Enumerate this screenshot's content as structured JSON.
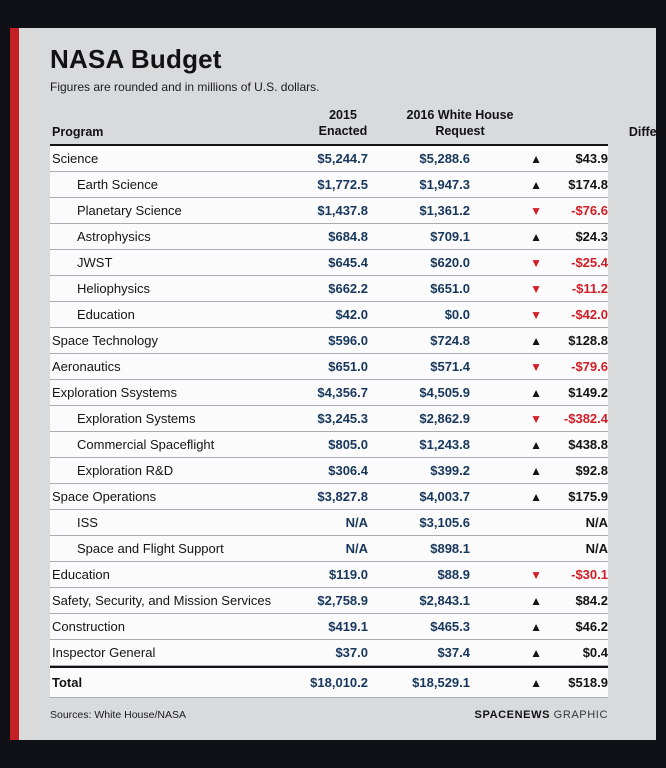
{
  "header": {
    "title": "NASA Budget",
    "subtitle": "Figures are rounded and in millions of U.S. dollars."
  },
  "table": {
    "columns": {
      "program": "Program",
      "enacted": "2015\nEnacted",
      "request": "2016 White House\nRequest",
      "difference": "Difference"
    },
    "rows": [
      {
        "program": "Science",
        "indent": false,
        "total": false,
        "enacted": "$5,244.7",
        "request": "$5,288.6",
        "difference": "$43.9",
        "direction": "up"
      },
      {
        "program": "Earth Science",
        "indent": true,
        "total": false,
        "enacted": "$1,772.5",
        "request": "$1,947.3",
        "difference": "$174.8",
        "direction": "up"
      },
      {
        "program": "Planetary Science",
        "indent": true,
        "total": false,
        "enacted": "$1,437.8",
        "request": "$1,361.2",
        "difference": "-$76.6",
        "direction": "down"
      },
      {
        "program": "Astrophysics",
        "indent": true,
        "total": false,
        "enacted": "$684.8",
        "request": "$709.1",
        "difference": "$24.3",
        "direction": "up"
      },
      {
        "program": "JWST",
        "indent": true,
        "total": false,
        "enacted": "$645.4",
        "request": "$620.0",
        "difference": "-$25.4",
        "direction": "down"
      },
      {
        "program": "Heliophysics",
        "indent": true,
        "total": false,
        "enacted": "$662.2",
        "request": "$651.0",
        "difference": "-$11.2",
        "direction": "down"
      },
      {
        "program": "Education",
        "indent": true,
        "total": false,
        "enacted": "$42.0",
        "request": "$0.0",
        "difference": "-$42.0",
        "direction": "down"
      },
      {
        "program": "Space Technology",
        "indent": false,
        "total": false,
        "enacted": "$596.0",
        "request": "$724.8",
        "difference": "$128.8",
        "direction": "up"
      },
      {
        "program": "Aeronautics",
        "indent": false,
        "total": false,
        "enacted": "$651.0",
        "request": "$571.4",
        "difference": "-$79.6",
        "direction": "down"
      },
      {
        "program": "Exploration Ssystems",
        "indent": false,
        "total": false,
        "enacted": "$4,356.7",
        "request": "$4,505.9",
        "difference": "$149.2",
        "direction": "up"
      },
      {
        "program": "Exploration Systems",
        "indent": true,
        "total": false,
        "enacted": "$3,245.3",
        "request": "$2,862.9",
        "difference": "-$382.4",
        "direction": "down"
      },
      {
        "program": "Commercial Spaceflight",
        "indent": true,
        "total": false,
        "enacted": "$805.0",
        "request": "$1,243.8",
        "difference": "$438.8",
        "direction": "up"
      },
      {
        "program": "Exploration R&D",
        "indent": true,
        "total": false,
        "enacted": "$306.4",
        "request": "$399.2",
        "difference": "$92.8",
        "direction": "up"
      },
      {
        "program": "Space Operations",
        "indent": false,
        "total": false,
        "enacted": "$3,827.8",
        "request": "$4,003.7",
        "difference": "$175.9",
        "direction": "up"
      },
      {
        "program": "ISS",
        "indent": true,
        "total": false,
        "enacted": "N/A",
        "request": "$3,105.6",
        "difference": "N/A",
        "direction": "none"
      },
      {
        "program": "Space and Flight Support",
        "indent": true,
        "total": false,
        "enacted": "N/A",
        "request": "$898.1",
        "difference": "N/A",
        "direction": "none"
      },
      {
        "program": "Education",
        "indent": false,
        "total": false,
        "enacted": "$119.0",
        "request": "$88.9",
        "difference": "-$30.1",
        "direction": "down"
      },
      {
        "program": "Safety, Security, and Mission Services",
        "indent": false,
        "total": false,
        "enacted": "$2,758.9",
        "request": "$2,843.1",
        "difference": "$84.2",
        "direction": "up"
      },
      {
        "program": "Construction",
        "indent": false,
        "total": false,
        "enacted": "$419.1",
        "request": "$465.3",
        "difference": "$46.2",
        "direction": "up"
      },
      {
        "program": "Inspector General",
        "indent": false,
        "total": false,
        "enacted": "$37.0",
        "request": "$37.4",
        "difference": "$0.4",
        "direction": "up"
      },
      {
        "program": "Total",
        "indent": false,
        "total": true,
        "enacted": "$18,010.2",
        "request": "$18,529.1",
        "difference": "$518.9",
        "direction": "up"
      }
    ]
  },
  "footer": {
    "sources": "Sources: White House/NASA",
    "credit_bold": "SPACENEWS",
    "credit_light": " GRAPHIC"
  },
  "glyphs": {
    "up_triangle": "▲",
    "down_triangle": "▼"
  },
  "colors": {
    "accent_red": "#c42127",
    "value_navy": "#16365c",
    "negative_red": "#d21c26",
    "card_bg": "#d9dadb",
    "frame_bg": "#0f1016"
  },
  "chart_data": {
    "type": "table",
    "title": "NASA Budget",
    "subtitle": "Figures are rounded and in millions of U.S. dollars",
    "units": "millions of U.S. dollars",
    "columns": [
      "Program",
      "2015 Enacted",
      "2016 White House Request",
      "Difference"
    ],
    "rows": [
      [
        "Science",
        5244.7,
        5288.6,
        43.9
      ],
      [
        "Earth Science",
        1772.5,
        1947.3,
        174.8
      ],
      [
        "Planetary Science",
        1437.8,
        1361.2,
        -76.6
      ],
      [
        "Astrophysics",
        684.8,
        709.1,
        24.3
      ],
      [
        "JWST",
        645.4,
        620.0,
        -25.4
      ],
      [
        "Heliophysics",
        662.2,
        651.0,
        -11.2
      ],
      [
        "Education",
        42.0,
        0.0,
        -42.0
      ],
      [
        "Space Technology",
        596.0,
        724.8,
        128.8
      ],
      [
        "Aeronautics",
        651.0,
        571.4,
        -79.6
      ],
      [
        "Exploration Ssystems",
        4356.7,
        4505.9,
        149.2
      ],
      [
        "Exploration Systems",
        3245.3,
        2862.9,
        -382.4
      ],
      [
        "Commercial Spaceflight",
        805.0,
        1243.8,
        438.8
      ],
      [
        "Exploration R&D",
        306.4,
        399.2,
        92.8
      ],
      [
        "Space Operations",
        3827.8,
        4003.7,
        175.9
      ],
      [
        "ISS",
        "N/A",
        3105.6,
        "N/A"
      ],
      [
        "Space and Flight Support",
        "N/A",
        898.1,
        "N/A"
      ],
      [
        "Education",
        119.0,
        88.9,
        -30.1
      ],
      [
        "Safety, Security, and Mission Services",
        2758.9,
        2843.1,
        84.2
      ],
      [
        "Construction",
        419.1,
        465.3,
        46.2
      ],
      [
        "Inspector General",
        37.0,
        37.4,
        0.4
      ],
      [
        "Total",
        18010.2,
        18529.1,
        518.9
      ]
    ],
    "sources": "White House/NASA",
    "credit": "SPACENEWS GRAPHIC"
  }
}
